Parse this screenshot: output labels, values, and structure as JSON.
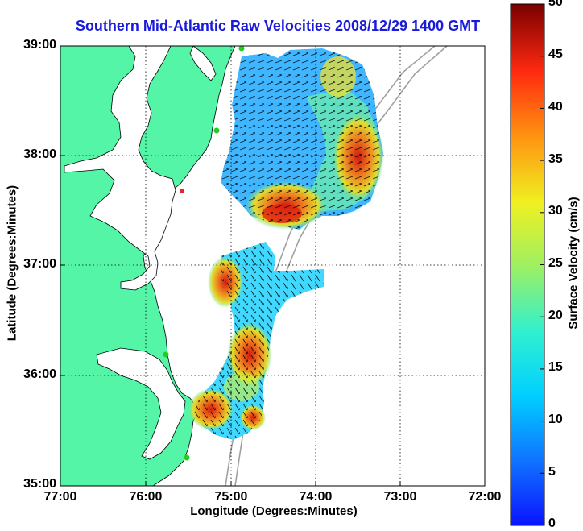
{
  "title": "Southern Mid-Atlantic Raw Velocities 2008/12/29 1400 GMT",
  "xlabel": "Longitude (Degrees:Minutes)",
  "ylabel": "Latitude (Degrees:Minutes)",
  "colorbar_label": "Surface Velocity (cm/s)",
  "xticks": [
    "77:00",
    "76:00",
    "75:00",
    "74:00",
    "73:00",
    "72:00"
  ],
  "yticks": [
    "39:00",
    "38:00",
    "37:00",
    "36:00",
    "35:00"
  ],
  "colorbar_ticks": [
    "50",
    "45",
    "40",
    "35",
    "30",
    "25",
    "20",
    "15",
    "10",
    "5",
    "0"
  ],
  "colors": {
    "land": "#55f5a8",
    "grid": "#000000",
    "title": "#1a1adb",
    "bathymetry": "#a0a0a0",
    "station_marker": "#22cc22",
    "station_marker_alt": "#ee2222"
  },
  "map": {
    "lon_range": [
      -77,
      -72
    ],
    "lat_range": [
      35,
      39
    ],
    "grid": true
  }
}
